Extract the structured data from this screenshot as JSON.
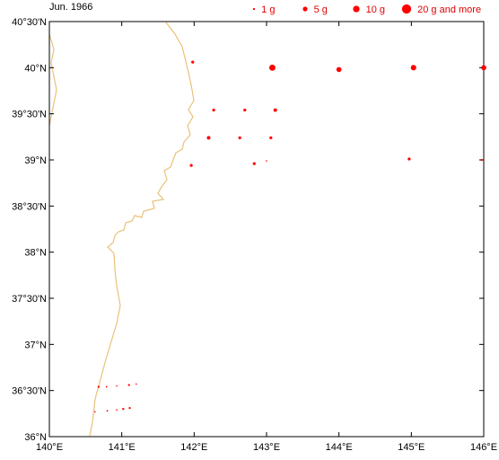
{
  "title": "Jun. 1966",
  "colors": {
    "marker": "#ff0000",
    "coast": "#e8c27a",
    "axis": "#000000"
  },
  "axes": {
    "lon_range": [
      140,
      146
    ],
    "lat_range": [
      36,
      40.5
    ],
    "y_ticks": [
      {
        "lat": 40.5,
        "label": "40°30'N"
      },
      {
        "lat": 40.0,
        "label": "40°N"
      },
      {
        "lat": 39.5,
        "label": "39°30'N"
      },
      {
        "lat": 39.0,
        "label": "39°N"
      },
      {
        "lat": 38.5,
        "label": "38°30'N"
      },
      {
        "lat": 38.0,
        "label": "38°N"
      },
      {
        "lat": 37.5,
        "label": "37°30'N"
      },
      {
        "lat": 37.0,
        "label": "37°N"
      },
      {
        "lat": 36.5,
        "label": "36°30'N"
      },
      {
        "lat": 36.0,
        "label": "36°N"
      }
    ],
    "x_ticks": [
      {
        "lon": 140,
        "label": "140°E"
      },
      {
        "lon": 141,
        "label": "141°E"
      },
      {
        "lon": 142,
        "label": "142°E"
      },
      {
        "lon": 143,
        "label": "143°E"
      },
      {
        "lon": 144,
        "label": "144°E"
      },
      {
        "lon": 145,
        "label": "145°E"
      },
      {
        "lon": 146,
        "label": "146°E"
      }
    ]
  },
  "legend": [
    {
      "label": "1 g",
      "grams": 1
    },
    {
      "label": "5 g",
      "grams": 5
    },
    {
      "label": "10 g",
      "grams": 10
    },
    {
      "label": "20 g and more",
      "grams": 20
    }
  ],
  "points": [
    {
      "lon": 141.98,
      "lat": 40.06,
      "g": 2
    },
    {
      "lon": 143.08,
      "lat": 40.0,
      "g": 9
    },
    {
      "lon": 144.0,
      "lat": 39.98,
      "g": 6
    },
    {
      "lon": 145.03,
      "lat": 40.0,
      "g": 7
    },
    {
      "lon": 146.0,
      "lat": 40.0,
      "g": 6
    },
    {
      "lon": 142.27,
      "lat": 39.54,
      "g": 2
    },
    {
      "lon": 142.7,
      "lat": 39.54,
      "g": 2
    },
    {
      "lon": 143.12,
      "lat": 39.54,
      "g": 3
    },
    {
      "lon": 142.2,
      "lat": 39.24,
      "g": 3
    },
    {
      "lon": 142.63,
      "lat": 39.24,
      "g": 2
    },
    {
      "lon": 143.06,
      "lat": 39.24,
      "g": 2
    },
    {
      "lon": 141.96,
      "lat": 38.94,
      "g": 2
    },
    {
      "lon": 142.83,
      "lat": 38.96,
      "g": 2
    },
    {
      "lon": 143.0,
      "lat": 38.99,
      "g": 0.5
    },
    {
      "lon": 144.97,
      "lat": 39.01,
      "g": 2
    },
    {
      "lon": 145.97,
      "lat": 39.0,
      "g": 1
    },
    {
      "lon": 140.68,
      "lat": 36.54,
      "g": 1
    },
    {
      "lon": 140.79,
      "lat": 36.54,
      "g": 0.6
    },
    {
      "lon": 140.93,
      "lat": 36.55,
      "g": 0.4
    },
    {
      "lon": 141.1,
      "lat": 36.56,
      "g": 1
    },
    {
      "lon": 141.2,
      "lat": 36.57,
      "g": 0.4
    },
    {
      "lon": 140.63,
      "lat": 36.27,
      "g": 0.4
    },
    {
      "lon": 140.8,
      "lat": 36.28,
      "g": 0.6
    },
    {
      "lon": 140.93,
      "lat": 36.29,
      "g": 0.4
    },
    {
      "lon": 141.02,
      "lat": 36.3,
      "g": 1
    },
    {
      "lon": 141.11,
      "lat": 36.31,
      "g": 1
    }
  ]
}
